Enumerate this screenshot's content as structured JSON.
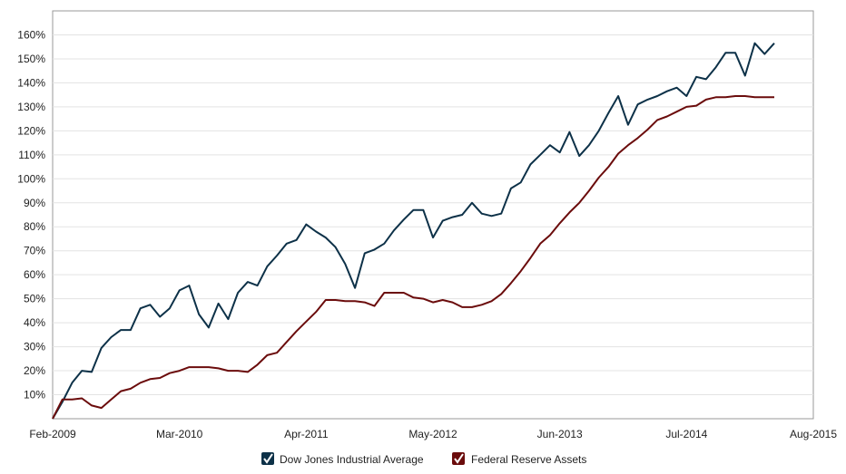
{
  "chart_data": {
    "type": "line",
    "title": "",
    "xlabel": "",
    "ylabel": "",
    "x_tick_labels": [
      "Feb-2009",
      "Mar-2010",
      "Apr-2011",
      "May-2012",
      "Jun-2013",
      "Jul-2014",
      "Aug-2015"
    ],
    "y_tick_labels": [
      "10%",
      "20%",
      "30%",
      "40%",
      "50%",
      "60%",
      "70%",
      "80%",
      "90%",
      "100%",
      "110%",
      "120%",
      "130%",
      "140%",
      "150%",
      "160%"
    ],
    "ylim": [
      0,
      170
    ],
    "xlim": [
      "2009-02",
      "2015-08"
    ],
    "grid": true,
    "legend_position": "bottom",
    "series": [
      {
        "name": "Dow Jones Industrial Average",
        "color": "#0d3148",
        "points": [
          [
            "2009-02",
            0
          ],
          [
            "2009-03",
            7
          ],
          [
            "2009-04",
            15
          ],
          [
            "2009-05",
            20
          ],
          [
            "2009-06",
            19.5
          ],
          [
            "2009-07",
            29.5
          ],
          [
            "2009-08",
            34
          ],
          [
            "2009-09",
            37
          ],
          [
            "2009-10",
            37
          ],
          [
            "2009-11",
            46
          ],
          [
            "2009-12",
            47.5
          ],
          [
            "2010-01",
            42.5
          ],
          [
            "2010-02",
            46
          ],
          [
            "2010-03",
            53.5
          ],
          [
            "2010-04",
            55.5
          ],
          [
            "2010-05",
            43.5
          ],
          [
            "2010-06",
            38
          ],
          [
            "2010-07",
            48
          ],
          [
            "2010-08",
            41.5
          ],
          [
            "2010-09",
            52.5
          ],
          [
            "2010-10",
            57
          ],
          [
            "2010-11",
            55.5
          ],
          [
            "2010-12",
            63.5
          ],
          [
            "2011-01",
            68
          ],
          [
            "2011-02",
            73
          ],
          [
            "2011-03",
            74.5
          ],
          [
            "2011-04",
            81
          ],
          [
            "2011-05",
            78
          ],
          [
            "2011-06",
            75.5
          ],
          [
            "2011-07",
            71.5
          ],
          [
            "2011-08",
            64.5
          ],
          [
            "2011-09",
            54.5
          ],
          [
            "2011-10",
            69
          ],
          [
            "2011-11",
            70.5
          ],
          [
            "2011-12",
            73
          ],
          [
            "2012-01",
            78.5
          ],
          [
            "2012-02",
            83
          ],
          [
            "2012-03",
            87
          ],
          [
            "2012-04",
            87
          ],
          [
            "2012-05",
            75.5
          ],
          [
            "2012-06",
            82.5
          ],
          [
            "2012-07",
            84
          ],
          [
            "2012-08",
            85
          ],
          [
            "2012-09",
            90
          ],
          [
            "2012-10",
            85.5
          ],
          [
            "2012-11",
            84.5
          ],
          [
            "2012-12",
            85.5
          ],
          [
            "2013-01",
            96
          ],
          [
            "2013-02",
            98.5
          ],
          [
            "2013-03",
            106
          ],
          [
            "2013-04",
            110
          ],
          [
            "2013-05",
            114
          ],
          [
            "2013-06",
            111
          ],
          [
            "2013-07",
            119.5
          ],
          [
            "2013-08",
            109.5
          ],
          [
            "2013-09",
            114
          ],
          [
            "2013-10",
            120
          ],
          [
            "2013-11",
            127.5
          ],
          [
            "2013-12",
            134.5
          ],
          [
            "2014-01",
            122.5
          ],
          [
            "2014-02",
            131
          ],
          [
            "2014-03",
            133
          ],
          [
            "2014-04",
            134.5
          ],
          [
            "2014-05",
            136.5
          ],
          [
            "2014-06",
            138
          ],
          [
            "2014-07",
            134.5
          ],
          [
            "2014-08",
            142.5
          ],
          [
            "2014-09",
            141.5
          ],
          [
            "2014-10",
            146.5
          ],
          [
            "2014-11",
            152.5
          ],
          [
            "2014-12",
            152.5
          ],
          [
            "2015-01",
            143
          ],
          [
            "2015-02",
            156.5
          ],
          [
            "2015-03",
            152
          ],
          [
            "2015-04",
            156.5
          ]
        ]
      },
      {
        "name": "Federal Reserve Assets",
        "color": "#6b0c0c",
        "points": [
          [
            "2009-02",
            0
          ],
          [
            "2009-03",
            8
          ],
          [
            "2009-04",
            8
          ],
          [
            "2009-05",
            8.5
          ],
          [
            "2009-06",
            5.5
          ],
          [
            "2009-07",
            4.5
          ],
          [
            "2009-08",
            8
          ],
          [
            "2009-09",
            11.5
          ],
          [
            "2009-10",
            12.5
          ],
          [
            "2009-11",
            15
          ],
          [
            "2009-12",
            16.5
          ],
          [
            "2010-01",
            17
          ],
          [
            "2010-02",
            19
          ],
          [
            "2010-03",
            20
          ],
          [
            "2010-04",
            21.5
          ],
          [
            "2010-05",
            21.5
          ],
          [
            "2010-06",
            21.5
          ],
          [
            "2010-07",
            21
          ],
          [
            "2010-08",
            20
          ],
          [
            "2010-09",
            20
          ],
          [
            "2010-10",
            19.5
          ],
          [
            "2010-11",
            22.5
          ],
          [
            "2010-12",
            26.5
          ],
          [
            "2011-01",
            27.5
          ],
          [
            "2011-02",
            32
          ],
          [
            "2011-03",
            36.5
          ],
          [
            "2011-04",
            40.5
          ],
          [
            "2011-05",
            44.5
          ],
          [
            "2011-06",
            49.5
          ],
          [
            "2011-07",
            49.5
          ],
          [
            "2011-08",
            49
          ],
          [
            "2011-09",
            49
          ],
          [
            "2011-10",
            48.5
          ],
          [
            "2011-11",
            47
          ],
          [
            "2011-12",
            52.5
          ],
          [
            "2012-01",
            52.5
          ],
          [
            "2012-02",
            52.5
          ],
          [
            "2012-03",
            50.5
          ],
          [
            "2012-04",
            50
          ],
          [
            "2012-05",
            48.5
          ],
          [
            "2012-06",
            49.5
          ],
          [
            "2012-07",
            48.5
          ],
          [
            "2012-08",
            46.5
          ],
          [
            "2012-09",
            46.5
          ],
          [
            "2012-10",
            47.5
          ],
          [
            "2012-11",
            49
          ],
          [
            "2012-12",
            52
          ],
          [
            "2013-01",
            56.5
          ],
          [
            "2013-02",
            61.5
          ],
          [
            "2013-03",
            67
          ],
          [
            "2013-04",
            73
          ],
          [
            "2013-05",
            76.5
          ],
          [
            "2013-06",
            81.5
          ],
          [
            "2013-07",
            86
          ],
          [
            "2013-08",
            90
          ],
          [
            "2013-09",
            95
          ],
          [
            "2013-10",
            100.5
          ],
          [
            "2013-11",
            105
          ],
          [
            "2013-12",
            110.5
          ],
          [
            "2014-01",
            114
          ],
          [
            "2014-02",
            117
          ],
          [
            "2014-03",
            120.5
          ],
          [
            "2014-04",
            124.5
          ],
          [
            "2014-05",
            126
          ],
          [
            "2014-06",
            128
          ],
          [
            "2014-07",
            130
          ],
          [
            "2014-08",
            130.5
          ],
          [
            "2014-09",
            133
          ],
          [
            "2014-10",
            134
          ],
          [
            "2014-11",
            134
          ],
          [
            "2014-12",
            134.5
          ],
          [
            "2015-01",
            134.5
          ],
          [
            "2015-02",
            134
          ],
          [
            "2015-03",
            134
          ],
          [
            "2015-04",
            134
          ]
        ]
      }
    ]
  }
}
